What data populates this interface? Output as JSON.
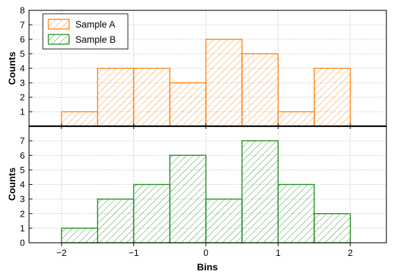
{
  "chart_data": [
    {
      "type": "bar",
      "histogram": true,
      "panel": "top",
      "bin_edges": [
        -2.0,
        -1.5,
        -1.0,
        -0.5,
        0.0,
        0.5,
        1.0,
        1.5,
        2.0
      ],
      "ylabel": "Counts",
      "xlabel": "",
      "ylim": [
        0,
        8
      ],
      "yticks": [
        1,
        2,
        3,
        4,
        5,
        6,
        7,
        8
      ],
      "xlim": [
        -2.45,
        2.5
      ],
      "grid": true,
      "legend": "top-left",
      "series": [
        {
          "name": "Sample A",
          "color": "#ff7f0e",
          "hatch": "diagonal",
          "values": [
            1,
            4,
            4,
            3,
            6,
            5,
            1,
            4
          ]
        },
        {
          "name": "Sample B",
          "color": "#1a8a1a",
          "hatch": "diagonal",
          "values": []
        }
      ]
    },
    {
      "type": "bar",
      "histogram": true,
      "panel": "bottom",
      "bin_edges": [
        -2.0,
        -1.5,
        -1.0,
        -0.5,
        0.0,
        0.5,
        1.0,
        1.5,
        2.0
      ],
      "ylabel": "Counts",
      "xlabel": "Bins",
      "ylim": [
        0,
        8
      ],
      "yticks": [
        0,
        1,
        2,
        3,
        4,
        5,
        6,
        7
      ],
      "xlim": [
        -2.45,
        2.5
      ],
      "xticks": [
        -2,
        -1,
        0,
        1,
        2
      ],
      "xtick_labels": [
        "−2",
        "−1",
        "0",
        "1",
        "2"
      ],
      "grid": true,
      "series": [
        {
          "name": "Sample B",
          "color": "#1a8a1a",
          "hatch": "diagonal",
          "values": [
            1,
            3,
            4,
            6,
            3,
            7,
            4,
            2
          ]
        }
      ]
    }
  ]
}
